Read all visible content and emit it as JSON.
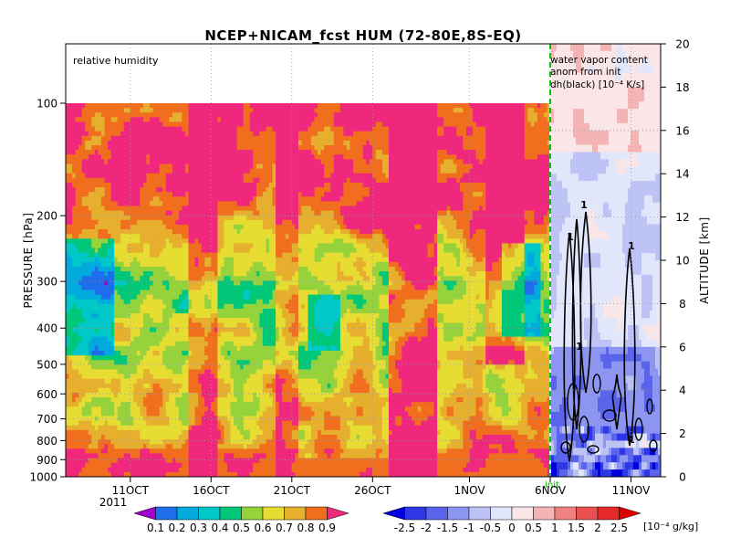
{
  "chart_data": {
    "type": "heatmap",
    "title": "NCEP+NICAM_fcst HUM (72-80E,8S-EQ)",
    "panels": [
      {
        "name": "relative humidity",
        "annotation": "relative humidity",
        "ylabel": "PRESSURE [hPa]",
        "ylim": [
          1000,
          100
        ],
        "y_ticks": [
          "100",
          "200",
          "300",
          "400",
          "500",
          "600",
          "700",
          "800",
          "900",
          "1000"
        ],
        "x_ticks": [
          "11OCT",
          "16OCT",
          "21OCT",
          "26OCT",
          "1NOV",
          "6NOV"
        ],
        "x_year": "2011",
        "x_range": [
          "2011-10-07",
          "2011-11-06"
        ],
        "colorbar": {
          "levels": [
            "0.1",
            "0.2",
            "0.3",
            "0.4",
            "0.5",
            "0.6",
            "0.7",
            "0.8",
            "0.9"
          ],
          "colors": [
            "#a000c8",
            "#1e6eeb",
            "#00aadc",
            "#00c8c8",
            "#00c878",
            "#96d23c",
            "#e6dc32",
            "#e6af2d",
            "#f06e1e",
            "#f0287d"
          ]
        },
        "layers": [
          {
            "pressure": "100-170",
            "typical_value": "> 0.9"
          },
          {
            "pressure": "170-300",
            "typical_value": "0.5-0.9"
          },
          {
            "pressure": "300-600",
            "typical_value": "0.3-0.7"
          },
          {
            "pressure": "600-850",
            "typical_value": "0.6-0.8"
          },
          {
            "pressure": "850-1000",
            "typical_value": "0.8-0.9"
          }
        ]
      },
      {
        "name": "water vapor content anom from init",
        "annotation": [
          "water vapor content",
          "anom from init",
          "dh(black) [10⁻⁴ K/s]"
        ],
        "ylabel": "ALTITUDE [km]",
        "ylim": [
          0,
          20
        ],
        "y_ticks": [
          "0",
          "2",
          "4",
          "6",
          "8",
          "10",
          "12",
          "14",
          "16",
          "18",
          "20"
        ],
        "x_ticks": [
          "11NOV"
        ],
        "x_range": [
          "2011-11-06",
          "2011-11-16"
        ],
        "init_label": "init",
        "colorbar": {
          "levels": [
            "-2.5",
            "-2",
            "-1.5",
            "-1",
            "-0.5",
            "0",
            "0.5",
            "1",
            "1.5",
            "2",
            "2.5"
          ],
          "unit": "[10⁻⁴ g/kg]",
          "colors": [
            "#0000dc",
            "#2d37e6",
            "#5a64eb",
            "#8c96f0",
            "#bec3f5",
            "#e1e6fa",
            "#fae6e6",
            "#f5b4b4",
            "#f08282",
            "#eb5050",
            "#e62828",
            "#dc0000"
          ]
        },
        "contour_label": "1"
      }
    ]
  }
}
